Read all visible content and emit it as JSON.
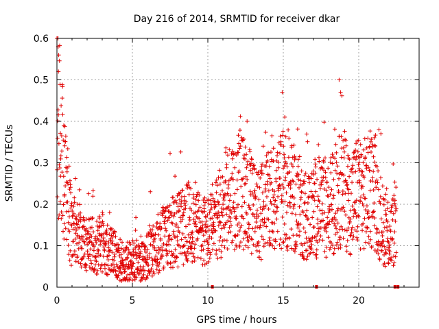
{
  "chart_data": {
    "type": "scatter",
    "title": "Day 216 of 2014, SRMTID for receiver dkar",
    "xlabel": "GPS time / hours",
    "ylabel": "SRMTID / TECUs",
    "xlim": [
      0,
      24
    ],
    "ylim": [
      0,
      0.6
    ],
    "x_ticks": [
      0,
      5,
      10,
      15,
      20
    ],
    "x_tick_labels": [
      "0",
      "5",
      "10",
      "15",
      "20"
    ],
    "y_ticks": [
      0,
      0.1,
      0.2,
      0.3,
      0.4,
      0.5,
      0.6
    ],
    "y_tick_labels": [
      "0",
      "0.1",
      "0.2",
      "0.3",
      "0.4",
      "0.5",
      "0.6"
    ],
    "grid": true,
    "marker": "+",
    "marker_color": "#e00000",
    "envelope": {
      "x": [
        0.0,
        0.1,
        0.3,
        0.5,
        0.8,
        1.0,
        1.5,
        2.0,
        2.5,
        3.0,
        3.5,
        4.0,
        4.5,
        5.0,
        5.5,
        6.0,
        6.5,
        7.0,
        7.5,
        8.0,
        8.5,
        9.0,
        9.5,
        10.0,
        10.5,
        11.0,
        11.5,
        12.0,
        12.5,
        13.0,
        13.5,
        14.0,
        14.5,
        15.0,
        15.5,
        16.0,
        16.5,
        17.0,
        17.5,
        18.0,
        18.5,
        19.0,
        19.5,
        20.0,
        20.5,
        21.0,
        21.5,
        22.0,
        22.5
      ],
      "y": [
        0.38,
        0.4,
        0.34,
        0.26,
        0.18,
        0.14,
        0.12,
        0.11,
        0.1,
        0.11,
        0.09,
        0.07,
        0.06,
        0.065,
        0.06,
        0.075,
        0.1,
        0.12,
        0.13,
        0.14,
        0.15,
        0.16,
        0.14,
        0.13,
        0.15,
        0.2,
        0.22,
        0.24,
        0.22,
        0.19,
        0.18,
        0.2,
        0.22,
        0.24,
        0.22,
        0.2,
        0.17,
        0.18,
        0.2,
        0.19,
        0.22,
        0.24,
        0.2,
        0.24,
        0.22,
        0.24,
        0.16,
        0.12,
        0.15
      ]
    },
    "peaks": [
      {
        "x": 0.08,
        "y": 0.58
      },
      {
        "x": 0.1,
        "y": 0.52
      },
      {
        "x": 18.7,
        "y": 0.5
      },
      {
        "x": 18.8,
        "y": 0.47
      },
      {
        "x": 15.1,
        "y": 0.41
      },
      {
        "x": 12.6,
        "y": 0.4
      }
    ],
    "zero_markers_x": [
      10.3,
      17.2,
      22.4,
      22.6
    ]
  }
}
